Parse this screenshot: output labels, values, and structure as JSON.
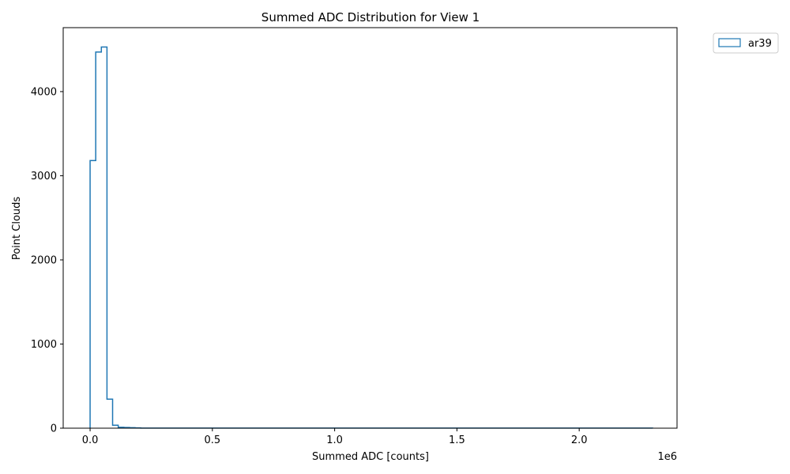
{
  "chart_data": {
    "type": "histogram",
    "title": "Summed ADC Distribution for View 1",
    "xlabel": "Summed ADC [counts]",
    "ylabel": "Point Clouds",
    "x_offset_label": "1e6",
    "xlim": [
      -110000,
      2400000
    ],
    "ylim": [
      0,
      4760
    ],
    "xticks": [
      0,
      500000,
      1000000,
      1500000,
      2000000
    ],
    "xtick_labels": [
      "0.0",
      "0.5",
      "1.0",
      "1.5",
      "2.0"
    ],
    "yticks": [
      0,
      1000,
      2000,
      3000,
      4000
    ],
    "ytick_labels": [
      "0",
      "1000",
      "2000",
      "3000",
      "4000"
    ],
    "grid": false,
    "legend_position": "outside-top-right",
    "series": [
      {
        "name": "ar39",
        "color": "#1f77b4",
        "bin_edges": [
          0,
          23000,
          46000,
          69000,
          92000,
          115000,
          138000,
          161000,
          184000,
          207000,
          2300000
        ],
        "counts": [
          3180,
          4470,
          4530,
          345,
          35,
          10,
          8,
          6,
          3,
          1
        ]
      }
    ]
  }
}
